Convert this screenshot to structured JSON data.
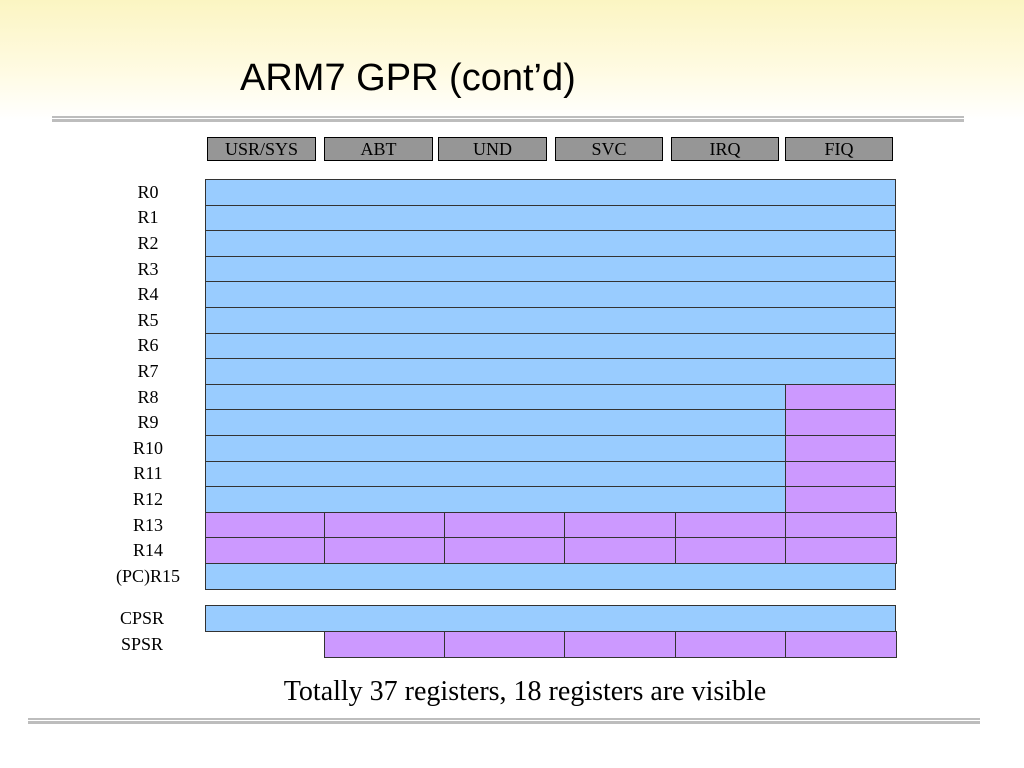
{
  "title": "ARM7 GPR (cont’d)",
  "modes": [
    "USR/SYS",
    "ABT",
    "UND",
    "SVC",
    "IRQ",
    "FIQ"
  ],
  "registers": [
    "R0",
    "R1",
    "R2",
    "R3",
    "R4",
    "R5",
    "R6",
    "R7",
    "R8",
    "R9",
    "R10",
    "R11",
    "R12",
    "R13",
    "R14",
    "(PC)R15"
  ],
  "status_registers": [
    "CPSR",
    "SPSR"
  ],
  "colors": {
    "shared": "#99ccff",
    "banked": "#cc99ff",
    "mode_header": "#969696"
  },
  "caption": "Totally 37 registers, 18 registers are visible"
}
